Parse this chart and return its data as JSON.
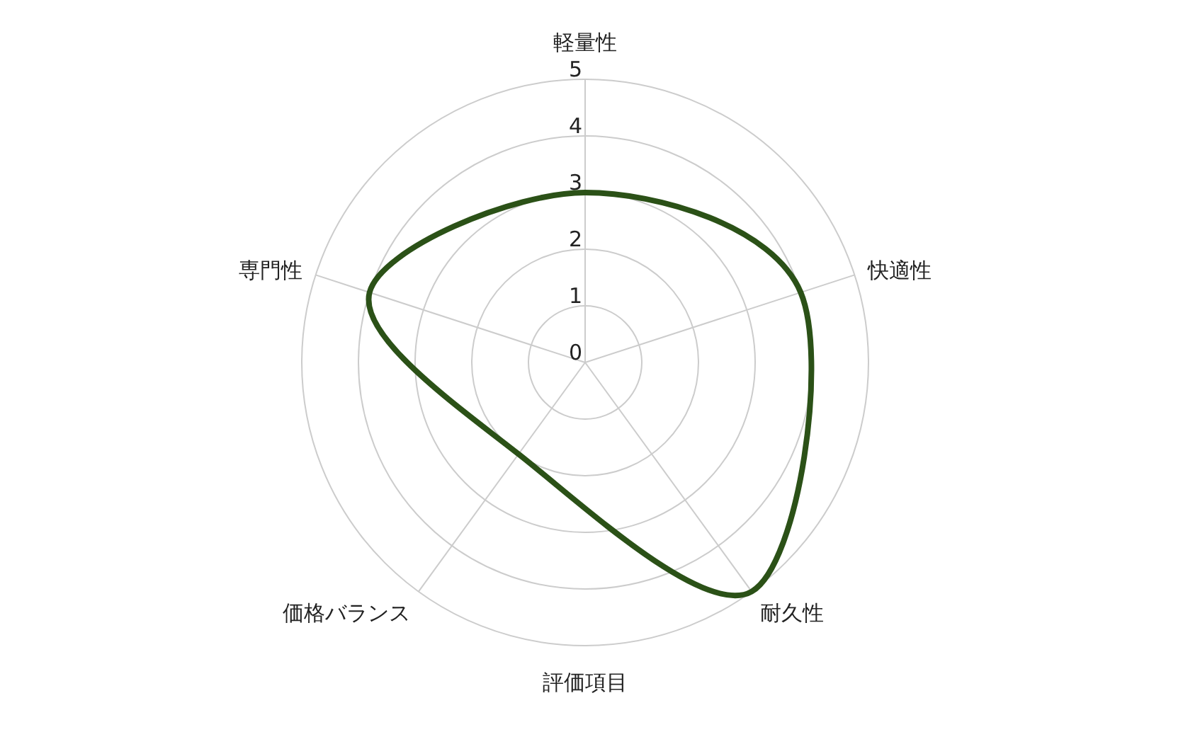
{
  "chart_data": {
    "type": "radar",
    "xlabel": "評価項目",
    "categories": [
      "軽量性",
      "快適性",
      "耐久性",
      "価格バランス",
      "専門性"
    ],
    "series": [
      {
        "color": "#2b5117",
        "values": [
          3,
          4,
          5,
          2,
          4
        ]
      }
    ],
    "ylim": [
      0,
      5
    ],
    "yticks": [
      0,
      1,
      2,
      3,
      4,
      5
    ],
    "grid": true,
    "line_style": "solid",
    "marker": "none"
  }
}
